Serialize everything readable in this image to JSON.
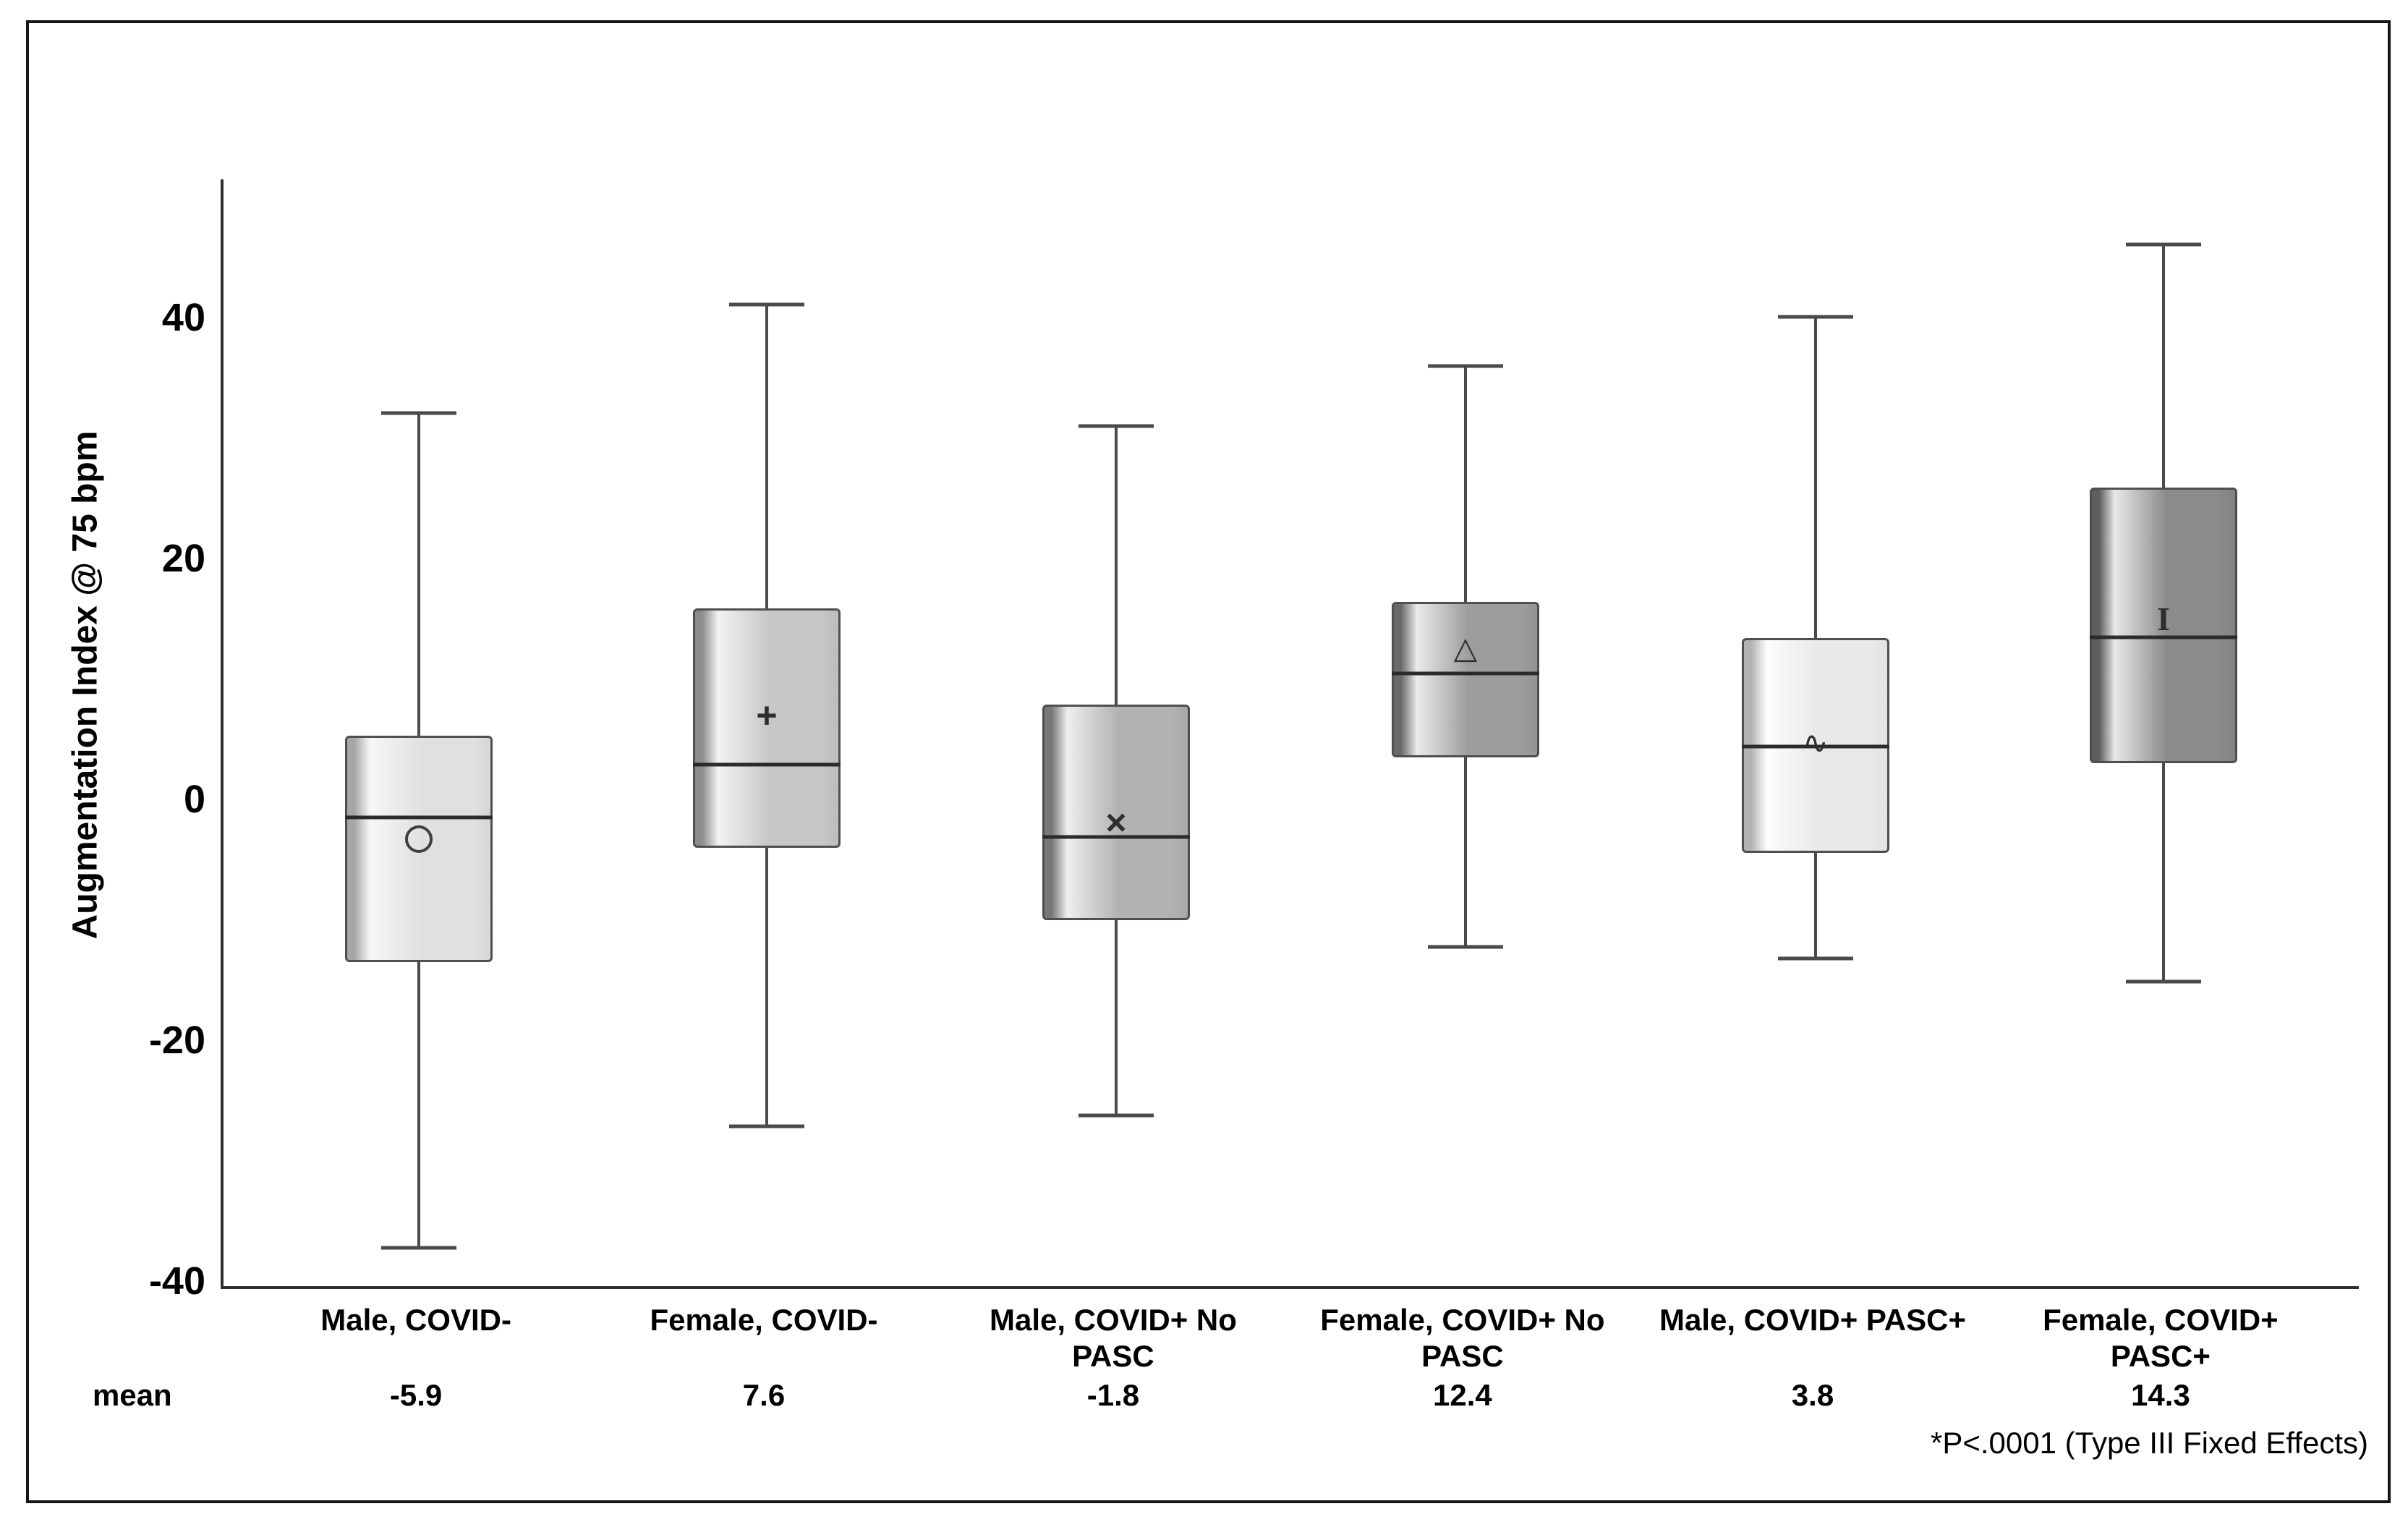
{
  "figure": {
    "yaxis_title": "Augmentation Index @ 75 bpm",
    "mean_row_label": "mean",
    "footnote": "*P<.0001 (Type III Fixed Effects)"
  },
  "icons": {
    "plus": "+",
    "x": "×",
    "triangle": "△",
    "wave": "∿",
    "ibeam": "I"
  },
  "colors": {
    "axis": "#2e2e2e",
    "whisker": "#4a4a4a",
    "box_border": "#4f4f4f",
    "median": "#2b2b2b",
    "frame": "#161616",
    "text": "#000000"
  },
  "chart_data": {
    "type": "boxplot",
    "ylabel": "Augmentation Index @ 75 bpm",
    "ylim": [
      -40.4,
      51.5
    ],
    "yticks": [
      40,
      20,
      0,
      -20,
      -40
    ],
    "grid": false,
    "footnote": "*P<.0001 (Type III Fixed Effects)",
    "groups": [
      {
        "label_lines": [
          "Male, COVID-"
        ],
        "mean_display": "-5.9",
        "mean": -5.9,
        "whisker_high": 32.1,
        "q3": 5.3,
        "median": -1.5,
        "q1": -13.5,
        "whisker_low": -37.2,
        "marker": {
          "symbol": "circle",
          "value": -3.3
        },
        "center_pct": 9.15,
        "fill": {
          "strip": "#a6a6a6",
          "highlight": "#f7f7f7",
          "body": "#e0e0e0",
          "body_dark": "#d6d6d6"
        }
      },
      {
        "label_lines": [
          "Female, COVID-"
        ],
        "mean_display": "7.6",
        "mean": 7.6,
        "whisker_high": 41.1,
        "q3": 15.9,
        "median": 2.9,
        "q1": -4.0,
        "whisker_low": -27.1,
        "marker": {
          "symbol": "plus",
          "value": 7.0
        },
        "center_pct": 25.44,
        "fill": {
          "strip": "#8c8c8c",
          "highlight": "#f2f2f2",
          "body": "#c7c7c7",
          "body_dark": "#bdbdbd"
        }
      },
      {
        "label_lines": [
          "Male, COVID+ No",
          "PASC"
        ],
        "mean_display": "-1.8",
        "mean": -1.8,
        "whisker_high": 31.0,
        "q3": 7.9,
        "median": -3.1,
        "q1": -10.0,
        "whisker_low": -26.2,
        "marker": {
          "symbol": "x",
          "value": -1.9
        },
        "center_pct": 41.8,
        "fill": {
          "strip": "#787878",
          "highlight": "#eeeeee",
          "body": "#b2b2b2",
          "body_dark": "#a9a9a9"
        }
      },
      {
        "label_lines": [
          "Female, COVID+ No",
          "PASC"
        ],
        "mean_display": "12.4",
        "mean": 12.4,
        "whisker_high": 36.0,
        "q3": 16.4,
        "median": 10.5,
        "q1": 3.5,
        "whisker_low": -12.2,
        "marker": {
          "symbol": "triangle",
          "value": 12.6
        },
        "center_pct": 58.16,
        "fill": {
          "strip": "#6a6a6a",
          "highlight": "#eaeaea",
          "body": "#9d9d9d",
          "body_dark": "#949494"
        }
      },
      {
        "label_lines": [
          "Male, COVID+ PASC+"
        ],
        "mean_display": "3.8",
        "mean": 3.8,
        "whisker_high": 40.1,
        "q3": 13.4,
        "median": 4.4,
        "q1": -4.4,
        "whisker_low": -13.2,
        "marker": {
          "symbol": "wave",
          "value": 4.7
        },
        "center_pct": 74.56,
        "fill": {
          "strip": "#b3b3b3",
          "highlight": "#fcfcfc",
          "body": "#e9e9e9",
          "body_dark": "#e2e2e2"
        }
      },
      {
        "label_lines": [
          "Female, COVID+",
          "PASC+"
        ],
        "mean_display": "14.3",
        "mean": 14.3,
        "whisker_high": 46.1,
        "q3": 25.9,
        "median": 13.5,
        "q1": 3.0,
        "whisker_low": -15.1,
        "marker": {
          "symbol": "ibeam",
          "value": 15.0
        },
        "center_pct": 90.85,
        "fill": {
          "strip": "#5d5d5d",
          "highlight": "#e8e8e8",
          "body": "#8b8b8b",
          "body_dark": "#828282"
        }
      }
    ]
  }
}
